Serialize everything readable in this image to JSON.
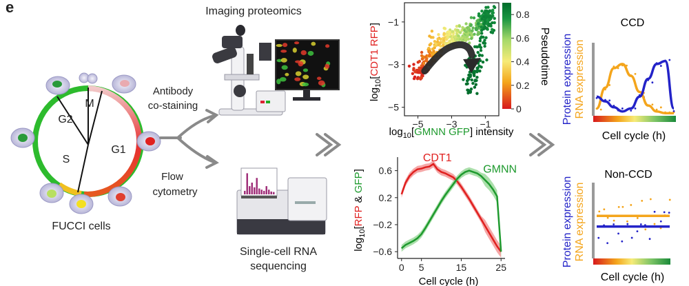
{
  "panel_label": "e",
  "left": {
    "caption": "FUCCI cells",
    "phases": {
      "g1": "G1",
      "s": "S",
      "g2": "G2",
      "m": "M"
    }
  },
  "arrows": {
    "top_label_1": "Antibody",
    "top_label_2": "co-staining",
    "bottom_label_1": "Flow",
    "bottom_label_2": "cytometry"
  },
  "middle": {
    "imaging_title": "Imaging proteomics",
    "sequencing_1": "Single-cell RNA",
    "sequencing_2": "sequencing"
  },
  "colors": {
    "red": "#e0201f",
    "green": "#1e9a2e",
    "blue": "#2323c8",
    "orange": "#f4a51c",
    "arrow_grey": "#8a8a8a"
  },
  "chart_data": [
    {
      "type": "scatter",
      "title": "",
      "xlabel_prefix": "log",
      "xlabel_sub": "10",
      "xlabel_open": "[",
      "xlabel_colored": "GMNN GFP",
      "xlabel_close": "] intensity",
      "ylabel_prefix": "log",
      "ylabel_sub": "10",
      "ylabel_open": "[",
      "ylabel_colored": "CDT1 RFP",
      "ylabel_close": "]",
      "xlim": [
        -5.8,
        -0.2
      ],
      "ylim": [
        -5.4,
        -0.1
      ],
      "x_ticks": [
        -5,
        -3,
        -1
      ],
      "y_ticks": [
        -1,
        -3,
        -5
      ],
      "colorbar": {
        "label": "Pseudotime",
        "ticks": [
          0,
          0.2,
          0.4,
          0.6,
          0.8
        ],
        "range": [
          0,
          0.9
        ],
        "colors": [
          "#d7191c",
          "#f4a51c",
          "#f6eb78",
          "#a6d96a",
          "#1a9641",
          "#006d2c"
        ]
      },
      "cloud_trajectory": [
        {
          "x": -5.0,
          "y": -3.5,
          "t": 0.0
        },
        {
          "x": -4.5,
          "y": -2.8,
          "t": 0.1
        },
        {
          "x": -3.9,
          "y": -2.1,
          "t": 0.22
        },
        {
          "x": -3.2,
          "y": -1.7,
          "t": 0.36
        },
        {
          "x": -2.4,
          "y": -1.6,
          "t": 0.5
        },
        {
          "x": -1.6,
          "y": -1.3,
          "t": 0.62
        },
        {
          "x": -1.0,
          "y": -0.9,
          "t": 0.72
        },
        {
          "x": -0.7,
          "y": -0.6,
          "t": 0.8
        },
        {
          "x": -1.6,
          "y": -2.9,
          "t": 0.85
        },
        {
          "x": -2.0,
          "y": -4.2,
          "t": 0.9
        }
      ]
    },
    {
      "type": "line",
      "title": "",
      "xlabel": "Cell cycle (h)",
      "ylabel_prefix": "log",
      "ylabel_sub": "10",
      "ylabel_open": "[",
      "ylabel_red": "RFP",
      "ylabel_mid": " & ",
      "ylabel_green": "GFP",
      "ylabel_close": "]",
      "xlim": [
        -1,
        26
      ],
      "ylim": [
        -0.7,
        0.8
      ],
      "x_ticks": [
        0,
        5,
        15,
        25
      ],
      "y_ticks": [
        0.6,
        0.2,
        -0.2,
        -0.6
      ],
      "x": [
        0,
        1,
        2,
        3,
        4,
        5,
        6,
        7,
        8,
        9,
        10,
        11,
        12,
        13,
        14,
        15,
        16,
        17,
        18,
        19,
        20,
        21,
        22,
        23,
        24,
        25
      ],
      "series": [
        {
          "name": "CDT1",
          "color": "#e0201f",
          "values": [
            0.25,
            0.42,
            0.52,
            0.58,
            0.62,
            0.63,
            0.65,
            0.66,
            0.7,
            0.62,
            0.58,
            0.56,
            0.53,
            0.5,
            0.44,
            0.36,
            0.27,
            0.18,
            0.08,
            -0.02,
            -0.12,
            -0.22,
            -0.32,
            -0.42,
            -0.52,
            -0.6
          ]
        },
        {
          "name": "GMNN",
          "color": "#1e9a2e",
          "values": [
            -0.55,
            -0.5,
            -0.47,
            -0.44,
            -0.4,
            -0.34,
            -0.25,
            -0.15,
            -0.05,
            0.05,
            0.15,
            0.24,
            0.32,
            0.4,
            0.48,
            0.54,
            0.58,
            0.6,
            0.58,
            0.56,
            0.52,
            0.46,
            0.4,
            0.32,
            0.22,
            -0.6
          ]
        }
      ]
    },
    {
      "type": "line",
      "title": "CCD",
      "xlabel": "Cell cycle (h)",
      "ylabel_a": "Protein expression",
      "ylabel_b": "RNA expression",
      "series": [
        {
          "name": "",
          "color": "#f4a51c",
          "values": [
            0.1,
            0.45,
            0.78,
            0.85,
            0.65,
            0.38,
            0.15,
            0.05,
            0.02,
            0.02
          ]
        },
        {
          "name": "",
          "color": "#2323c8",
          "values": [
            0.3,
            0.22,
            0.12,
            0.05,
            0.1,
            0.3,
            0.6,
            0.85,
            0.9,
            0.1
          ]
        }
      ]
    },
    {
      "type": "scatter",
      "title": "Non-CCD",
      "xlabel": "Cell cycle (h)",
      "ylabel_a": "Protein expression",
      "ylabel_b": "RNA expression",
      "series": [
        {
          "name": "",
          "color": "#f4a51c",
          "level": 0.55
        },
        {
          "name": "",
          "color": "#2323c8",
          "level": 0.4
        }
      ]
    }
  ]
}
